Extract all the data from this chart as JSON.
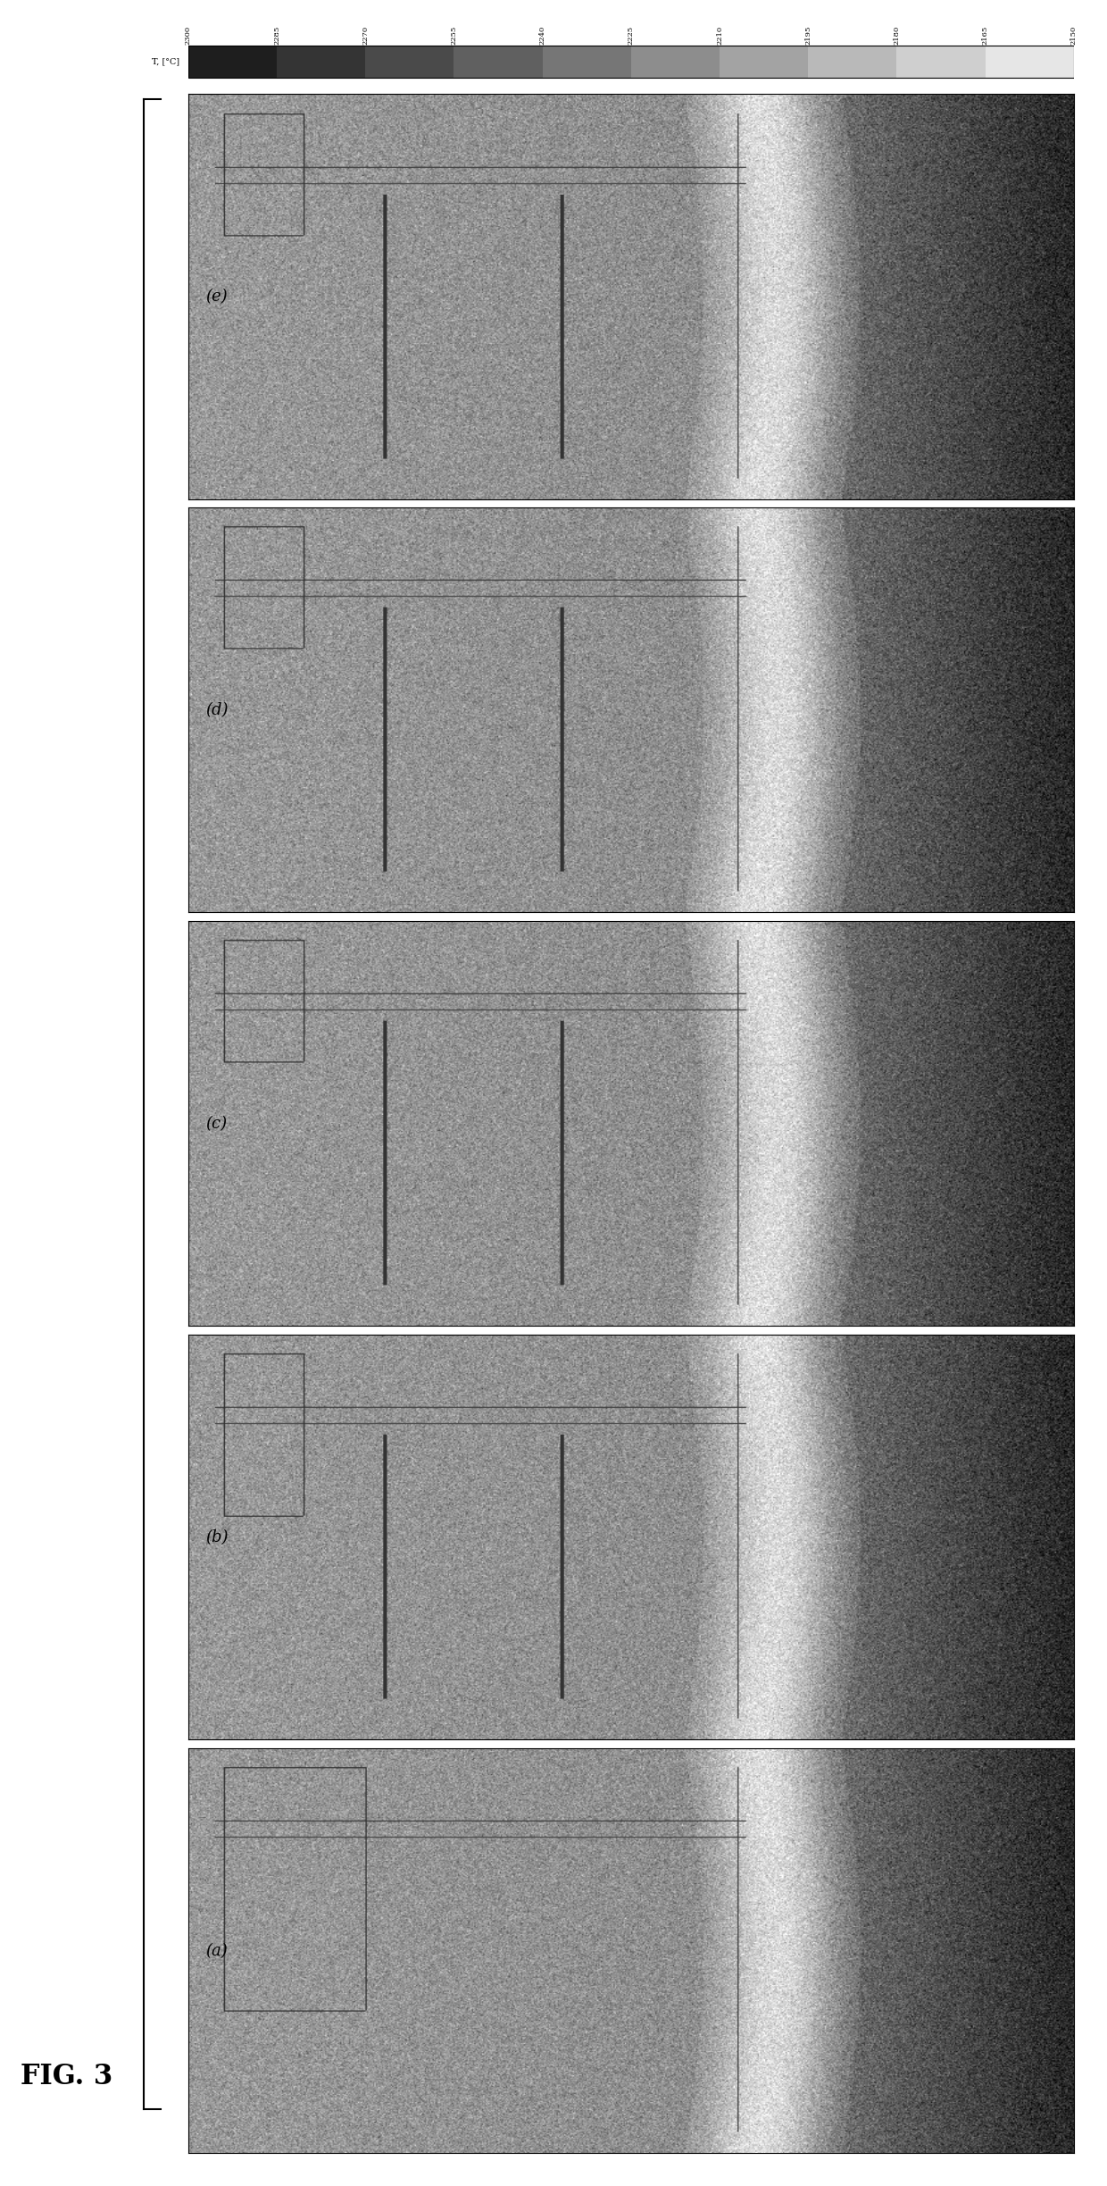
{
  "title": "FIG. 3",
  "colorbar_labels": [
    "2300",
    "2285",
    "2270",
    "2255",
    "2240",
    "2225",
    "2210",
    "2195",
    "2180",
    "2165",
    "2150"
  ],
  "colorbar_title": "T, [°C]",
  "panel_labels": [
    "(e)",
    "(d)",
    "(c)",
    "(b)",
    "(a)"
  ],
  "background_color": "#ffffff",
  "fig_width": 12.4,
  "fig_height": 24.47
}
